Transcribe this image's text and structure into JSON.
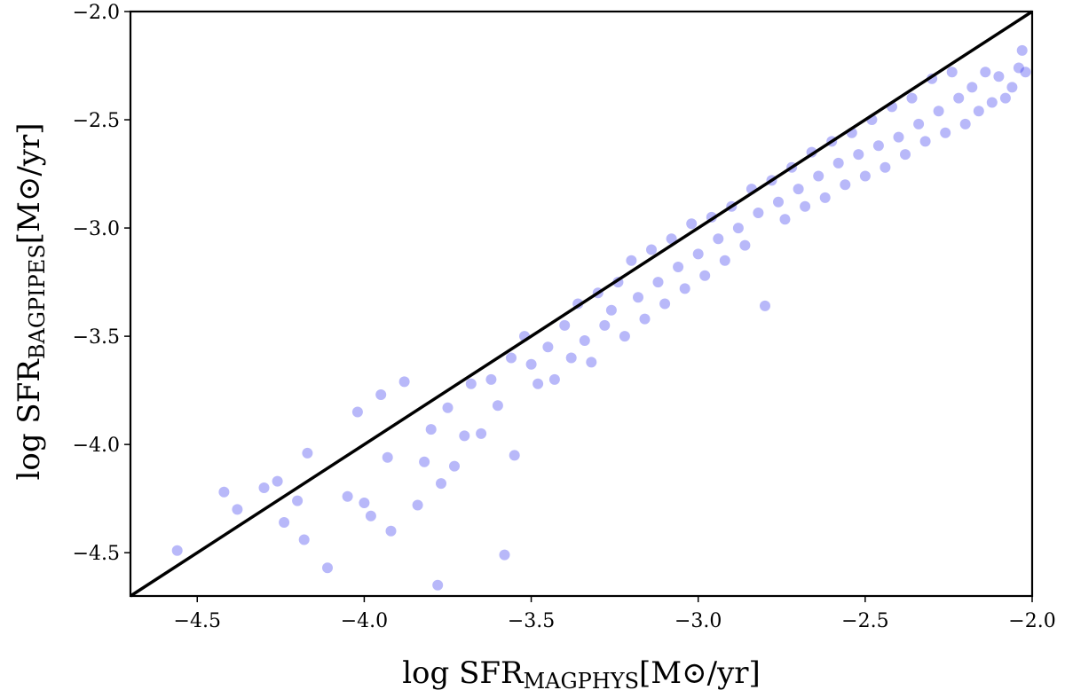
{
  "chart_data": {
    "type": "scatter",
    "title": "",
    "xlabel": {
      "prefix": "log SFR",
      "subscript": "MAGPHYS",
      "suffix": "[M⊙/yr]"
    },
    "ylabel": {
      "prefix": "log SFR",
      "subscript": "BAGPIPES",
      "suffix": "[M⊙/yr]"
    },
    "xlim": [
      -4.7,
      -2.0
    ],
    "ylim": [
      -4.7,
      -2.0
    ],
    "xticks": [
      -4.5,
      -4.0,
      -3.5,
      -3.0,
      -2.5,
      -2.0
    ],
    "yticks": [
      -4.5,
      -4.0,
      -3.5,
      -3.0,
      -2.5,
      -2.0
    ],
    "xtick_labels": [
      "−4.5",
      "−4.0",
      "−3.5",
      "−3.0",
      "−2.5",
      "−2.0"
    ],
    "ytick_labels": [
      "−4.5",
      "−4.0",
      "−3.5",
      "−3.0",
      "−2.5",
      "−2.0"
    ],
    "grid": false,
    "point_color": "#3333ee",
    "point_opacity": 0.35,
    "line_color": "#000000",
    "one_to_one_line": {
      "x": [
        -4.7,
        -2.0
      ],
      "y": [
        -4.7,
        -2.0
      ]
    },
    "series": [
      {
        "values_xy": [
          [
            -4.56,
            -4.49
          ],
          [
            -4.42,
            -4.22
          ],
          [
            -4.38,
            -4.3
          ],
          [
            -4.3,
            -4.2
          ],
          [
            -4.26,
            -4.17
          ],
          [
            -4.24,
            -4.36
          ],
          [
            -4.2,
            -4.26
          ],
          [
            -4.18,
            -4.44
          ],
          [
            -4.17,
            -4.04
          ],
          [
            -4.11,
            -4.57
          ],
          [
            -4.05,
            -4.24
          ],
          [
            -4.02,
            -3.85
          ],
          [
            -4.0,
            -4.27
          ],
          [
            -3.98,
            -4.33
          ],
          [
            -3.95,
            -3.77
          ],
          [
            -3.93,
            -4.06
          ],
          [
            -3.92,
            -4.4
          ],
          [
            -3.88,
            -3.71
          ],
          [
            -3.84,
            -4.28
          ],
          [
            -3.82,
            -4.08
          ],
          [
            -3.8,
            -3.93
          ],
          [
            -3.78,
            -4.65
          ],
          [
            -3.77,
            -4.18
          ],
          [
            -3.75,
            -3.83
          ],
          [
            -3.73,
            -4.1
          ],
          [
            -3.7,
            -3.96
          ],
          [
            -3.68,
            -3.72
          ],
          [
            -3.65,
            -3.95
          ],
          [
            -3.62,
            -3.7
          ],
          [
            -3.6,
            -3.82
          ],
          [
            -3.58,
            -4.51
          ],
          [
            -3.56,
            -3.6
          ],
          [
            -3.55,
            -4.05
          ],
          [
            -3.52,
            -3.5
          ],
          [
            -3.5,
            -3.63
          ],
          [
            -3.48,
            -3.72
          ],
          [
            -3.45,
            -3.55
          ],
          [
            -3.43,
            -3.7
          ],
          [
            -3.4,
            -3.45
          ],
          [
            -3.38,
            -3.6
          ],
          [
            -3.36,
            -3.35
          ],
          [
            -3.34,
            -3.52
          ],
          [
            -3.32,
            -3.62
          ],
          [
            -3.3,
            -3.3
          ],
          [
            -3.28,
            -3.45
          ],
          [
            -3.26,
            -3.38
          ],
          [
            -3.24,
            -3.25
          ],
          [
            -3.22,
            -3.5
          ],
          [
            -3.2,
            -3.15
          ],
          [
            -3.18,
            -3.32
          ],
          [
            -3.16,
            -3.42
          ],
          [
            -3.14,
            -3.1
          ],
          [
            -3.12,
            -3.25
          ],
          [
            -3.1,
            -3.35
          ],
          [
            -3.08,
            -3.05
          ],
          [
            -3.06,
            -3.18
          ],
          [
            -3.04,
            -3.28
          ],
          [
            -3.02,
            -2.98
          ],
          [
            -3.0,
            -3.12
          ],
          [
            -2.98,
            -3.22
          ],
          [
            -2.96,
            -2.95
          ],
          [
            -2.94,
            -3.05
          ],
          [
            -2.92,
            -3.15
          ],
          [
            -2.9,
            -2.9
          ],
          [
            -2.88,
            -3.0
          ],
          [
            -2.86,
            -3.08
          ],
          [
            -2.84,
            -2.82
          ],
          [
            -2.82,
            -2.93
          ],
          [
            -2.8,
            -3.36
          ],
          [
            -2.78,
            -2.78
          ],
          [
            -2.76,
            -2.88
          ],
          [
            -2.74,
            -2.96
          ],
          [
            -2.72,
            -2.72
          ],
          [
            -2.7,
            -2.82
          ],
          [
            -2.68,
            -2.9
          ],
          [
            -2.66,
            -2.65
          ],
          [
            -2.64,
            -2.76
          ],
          [
            -2.62,
            -2.86
          ],
          [
            -2.6,
            -2.6
          ],
          [
            -2.58,
            -2.7
          ],
          [
            -2.56,
            -2.8
          ],
          [
            -2.54,
            -2.56
          ],
          [
            -2.52,
            -2.66
          ],
          [
            -2.5,
            -2.76
          ],
          [
            -2.48,
            -2.5
          ],
          [
            -2.46,
            -2.62
          ],
          [
            -2.44,
            -2.72
          ],
          [
            -2.42,
            -2.44
          ],
          [
            -2.4,
            -2.58
          ],
          [
            -2.38,
            -2.66
          ],
          [
            -2.36,
            -2.4
          ],
          [
            -2.34,
            -2.52
          ],
          [
            -2.32,
            -2.6
          ],
          [
            -2.3,
            -2.31
          ],
          [
            -2.28,
            -2.46
          ],
          [
            -2.26,
            -2.56
          ],
          [
            -2.24,
            -2.28
          ],
          [
            -2.22,
            -2.4
          ],
          [
            -2.2,
            -2.52
          ],
          [
            -2.18,
            -2.35
          ],
          [
            -2.16,
            -2.46
          ],
          [
            -2.14,
            -2.28
          ],
          [
            -2.12,
            -2.42
          ],
          [
            -2.1,
            -2.3
          ],
          [
            -2.08,
            -2.4
          ],
          [
            -2.06,
            -2.35
          ],
          [
            -2.04,
            -2.26
          ],
          [
            -2.03,
            -2.18
          ],
          [
            -2.02,
            -2.28
          ]
        ]
      }
    ]
  }
}
